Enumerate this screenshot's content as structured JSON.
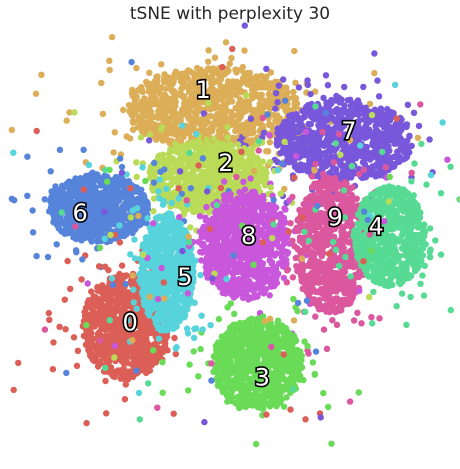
{
  "chart_data": {
    "type": "scatter",
    "title": "tSNE with perplexity 30",
    "grid": false,
    "axes_visible": false,
    "xlim": [
      -45,
      45
    ],
    "ylim": [
      -46,
      46
    ],
    "clusters": [
      {
        "label": "0",
        "color": "#db5f57",
        "center": [
          -24,
          -18
        ],
        "spread": [
          9.5,
          11.5
        ],
        "count": 900
      },
      {
        "label": "1",
        "color": "#dbae57",
        "center": [
          -5,
          30
        ],
        "spread": [
          19,
          9
        ],
        "count": 900
      },
      {
        "label": "2",
        "color": "#b9db57",
        "center": [
          -6,
          15
        ],
        "spread": [
          13,
          8
        ],
        "count": 850
      },
      {
        "label": "3",
        "color": "#69db57",
        "center": [
          5,
          -26
        ],
        "spread": [
          10,
          10
        ],
        "count": 850
      },
      {
        "label": "4",
        "color": "#57db94",
        "center": [
          34,
          2
        ],
        "spread": [
          8,
          11
        ],
        "count": 700
      },
      {
        "label": "5",
        "color": "#57d3db",
        "center": [
          -15,
          -6
        ],
        "spread": [
          6,
          13
        ],
        "count": 750
      },
      {
        "label": "6",
        "color": "#5784db",
        "center": [
          -30,
          8
        ],
        "spread": [
          11,
          7.5
        ],
        "count": 800
      },
      {
        "label": "7",
        "color": "#7957db",
        "center": [
          24,
          23
        ],
        "spread": [
          15,
          9
        ],
        "count": 850
      },
      {
        "label": "8",
        "color": "#c957db",
        "center": [
          2,
          0
        ],
        "spread": [
          10,
          12
        ],
        "count": 850
      },
      {
        "label": "9",
        "color": "#db579e",
        "center": [
          21,
          0
        ],
        "spread": [
          8,
          15
        ],
        "count": 800
      }
    ],
    "label_positions": [
      {
        "label": "0",
        "x": -23,
        "y": -17
      },
      {
        "label": "1",
        "x": -7,
        "y": 34
      },
      {
        "label": "2",
        "x": -2,
        "y": 18
      },
      {
        "label": "3",
        "x": 6,
        "y": -29
      },
      {
        "label": "4",
        "x": 31,
        "y": 4
      },
      {
        "label": "5",
        "x": -11,
        "y": -7
      },
      {
        "label": "6",
        "x": -34,
        "y": 7
      },
      {
        "label": "7",
        "x": 25,
        "y": 25
      },
      {
        "label": "8",
        "x": 3,
        "y": 2
      },
      {
        "label": "9",
        "x": 22,
        "y": 6
      }
    ]
  }
}
